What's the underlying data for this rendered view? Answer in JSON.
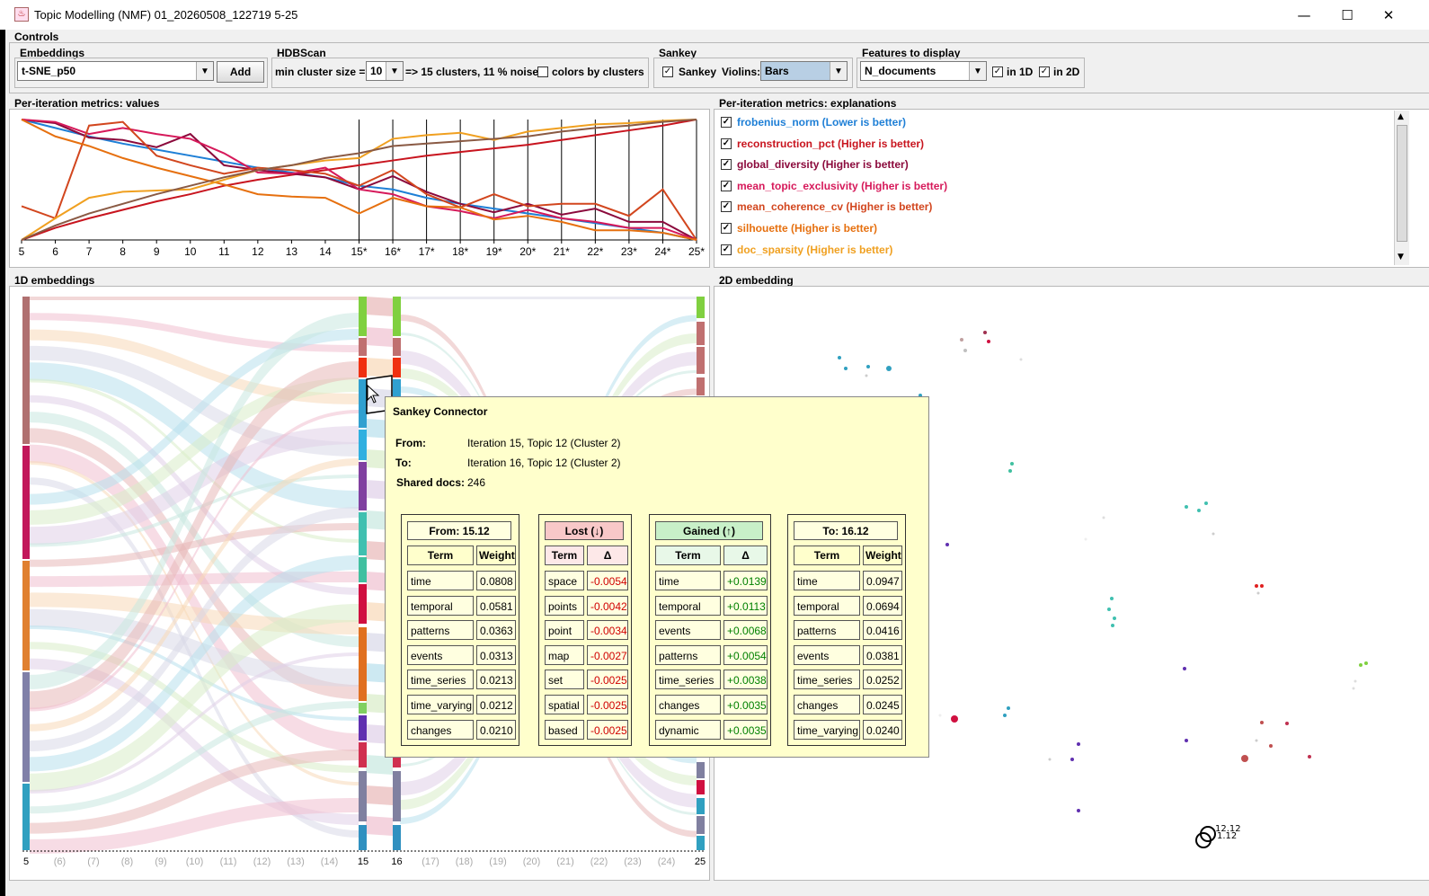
{
  "window": {
    "title": "Topic Modelling (NMF) 01_20260508_122719 5-25",
    "minimize": "—",
    "maximize": "☐",
    "close": "✕"
  },
  "controls": {
    "label": "Controls",
    "embeddings": {
      "label": "Embeddings",
      "value": "t-SNE_p50",
      "add": "Add"
    },
    "hdbscan": {
      "label": "HDBScan",
      "min_cluster_label": "min cluster size =",
      "min_cluster_value": "10",
      "result": "=> 15 clusters, 11 % noise",
      "colors_label": "colors by clusters"
    },
    "sankey": {
      "label": "Sankey",
      "sankey_label": "Sankey",
      "violins_label": "Violins:",
      "violins_value": "Bars"
    },
    "features": {
      "label": "Features to display",
      "value": "N_documents",
      "in1d": "in 1D",
      "in2d": "in 2D"
    }
  },
  "metrics_values": {
    "label": "Per-iteration metrics: values"
  },
  "metrics_explanations": {
    "label": "Per-iteration metrics: explanations",
    "items": [
      {
        "text": "frobenius_norm (Lower is better)",
        "color": "#1e7fd6"
      },
      {
        "text": "reconstruction_pct (Higher is better)",
        "color": "#c8141e"
      },
      {
        "text": "global_diversity (Higher is better)",
        "color": "#8b0a3c"
      },
      {
        "text": "mean_topic_exclusivity (Higher is better)",
        "color": "#d6195a"
      },
      {
        "text": "mean_coherence_cv (Higher is better)",
        "color": "#d2461e"
      },
      {
        "text": "silhouette (Higher is better)",
        "color": "#e6700f"
      },
      {
        "text": "doc_sparsity (Higher is better)",
        "color": "#f0a020"
      }
    ]
  },
  "chart_data": {
    "type": "line",
    "x": [
      "5",
      "6",
      "7",
      "8",
      "9",
      "10",
      "11",
      "12",
      "13",
      "14",
      "15*",
      "16*",
      "17*",
      "18*",
      "19*",
      "20*",
      "21*",
      "22*",
      "23*",
      "24*",
      "25*"
    ],
    "series": [
      {
        "name": "frobenius_norm (Lower is better)",
        "color": "#1e7fd6",
        "values": [
          1.0,
          0.93,
          0.86,
          0.8,
          0.75,
          0.7,
          0.65,
          0.6,
          0.56,
          0.52,
          0.45,
          0.42,
          0.35,
          0.3,
          0.26,
          0.22,
          0.18,
          0.14,
          0.1,
          0.06,
          0.0
        ]
      },
      {
        "name": "reconstruction_pct (Higher is better)",
        "color": "#c8141e",
        "values": [
          0.0,
          0.1,
          0.18,
          0.25,
          0.32,
          0.38,
          0.45,
          0.5,
          0.54,
          0.58,
          0.62,
          0.66,
          0.7,
          0.73,
          0.76,
          0.79,
          0.83,
          0.87,
          0.91,
          0.95,
          1.0
        ]
      },
      {
        "name": "global_diversity (Higher is better)",
        "color": "#8b0a3c",
        "values": [
          1.0,
          0.97,
          0.85,
          0.83,
          0.77,
          0.88,
          0.62,
          0.58,
          0.55,
          0.52,
          0.42,
          0.53,
          0.4,
          0.3,
          0.23,
          0.3,
          0.21,
          0.26,
          0.15,
          0.15,
          0.0
        ]
      },
      {
        "name": "mean_topic_exclusivity (Higher is better)",
        "color": "#d6195a",
        "values": [
          1.0,
          0.98,
          0.88,
          0.93,
          0.88,
          0.84,
          0.72,
          0.56,
          0.55,
          0.6,
          0.42,
          0.38,
          0.28,
          0.24,
          0.18,
          0.25,
          0.18,
          0.15,
          0.1,
          0.1,
          0.0
        ]
      },
      {
        "name": "mean_coherence_cv (Higher is better)",
        "color": "#d2461e",
        "values": [
          0.28,
          0.18,
          0.95,
          0.98,
          0.7,
          0.62,
          0.55,
          0.6,
          0.58,
          0.55,
          0.45,
          0.58,
          0.38,
          0.27,
          0.38,
          0.28,
          0.3,
          0.3,
          0.2,
          0.42,
          0.0
        ]
      },
      {
        "name": "silhouette (Higher is better)",
        "color": "#e6700f",
        "values": [
          1.0,
          0.86,
          0.78,
          0.68,
          0.6,
          0.53,
          0.46,
          0.38,
          0.36,
          0.35,
          0.22,
          0.35,
          0.28,
          0.27,
          0.17,
          0.2,
          0.15,
          0.08,
          0.08,
          0.06,
          0.0
        ]
      },
      {
        "name": "doc_sparsity (Higher is better)",
        "color": "#f0a020",
        "values": [
          0.0,
          0.18,
          0.35,
          0.4,
          0.41,
          0.42,
          0.5,
          0.58,
          0.62,
          0.66,
          0.68,
          0.84,
          0.87,
          0.89,
          0.83,
          0.9,
          0.93,
          0.96,
          0.97,
          0.99,
          1.0
        ]
      },
      {
        "name": "",
        "color": "#8a5a44",
        "values": [
          0.0,
          0.12,
          0.22,
          0.3,
          0.38,
          0.45,
          0.52,
          0.58,
          0.62,
          0.68,
          0.72,
          0.78,
          0.8,
          0.82,
          0.84,
          0.86,
          0.9,
          0.93,
          0.95,
          0.98,
          1.0
        ]
      }
    ],
    "ylim": [
      0,
      1
    ]
  },
  "oned": {
    "label": "1D embeddings",
    "axis": [
      {
        "t": "5",
        "dim": false
      },
      {
        "t": "(6)",
        "dim": true
      },
      {
        "t": "(7)",
        "dim": true
      },
      {
        "t": "(8)",
        "dim": true
      },
      {
        "t": "(9)",
        "dim": true
      },
      {
        "t": "(10)",
        "dim": true
      },
      {
        "t": "(11)",
        "dim": true
      },
      {
        "t": "(12)",
        "dim": true
      },
      {
        "t": "(13)",
        "dim": true
      },
      {
        "t": "(14)",
        "dim": true
      },
      {
        "t": "15",
        "dim": false
      },
      {
        "t": "16",
        "dim": false
      },
      {
        "t": "(17)",
        "dim": true
      },
      {
        "t": "(18)",
        "dim": true
      },
      {
        "t": "(19)",
        "dim": true
      },
      {
        "t": "(20)",
        "dim": true
      },
      {
        "t": "(21)",
        "dim": true
      },
      {
        "t": "(22)",
        "dim": true
      },
      {
        "t": "(23)",
        "dim": true
      },
      {
        "t": "(24)",
        "dim": true
      },
      {
        "t": "25",
        "dim": false
      }
    ]
  },
  "twod": {
    "label": "2D embedding",
    "point_label_a": "12.12",
    "point_label_b": "1.12"
  },
  "tooltip": {
    "title": "Sankey Connector",
    "from_label": "From:",
    "from_value": "Iteration 15, Topic 12 (Cluster 2)",
    "to_label": "To:",
    "to_value": "Iteration 16, Topic 12 (Cluster 2)",
    "shared_label": "Shared docs:",
    "shared_value": "246",
    "from_table": {
      "title": "From: 15.12",
      "col1": "Term",
      "col2": "Weight",
      "rows": [
        [
          "time",
          "0.0808"
        ],
        [
          "temporal",
          "0.0581"
        ],
        [
          "patterns",
          "0.0363"
        ],
        [
          "events",
          "0.0313"
        ],
        [
          "time_series",
          "0.0213"
        ],
        [
          "time_varying",
          "0.0212"
        ],
        [
          "changes",
          "0.0210"
        ]
      ]
    },
    "lost_table": {
      "title": "Lost (↓)",
      "col1": "Term",
      "col2": "Δ",
      "rows": [
        [
          "space",
          "-0.0054"
        ],
        [
          "points",
          "-0.0042"
        ],
        [
          "point",
          "-0.0034"
        ],
        [
          "map",
          "-0.0027"
        ],
        [
          "set",
          "-0.0025"
        ],
        [
          "spatial",
          "-0.0025"
        ],
        [
          "based",
          "-0.0025"
        ]
      ]
    },
    "gained_table": {
      "title": "Gained (↑)",
      "col1": "Term",
      "col2": "Δ",
      "rows": [
        [
          "time",
          "+0.0139"
        ],
        [
          "temporal",
          "+0.0113"
        ],
        [
          "events",
          "+0.0068"
        ],
        [
          "patterns",
          "+0.0054"
        ],
        [
          "time_series",
          "+0.0038"
        ],
        [
          "changes",
          "+0.0035"
        ],
        [
          "dynamic",
          "+0.0035"
        ]
      ]
    },
    "to_table": {
      "title": "To: 16.12",
      "col1": "Term",
      "col2": "Weight",
      "rows": [
        [
          "time",
          "0.0947"
        ],
        [
          "temporal",
          "0.0694"
        ],
        [
          "patterns",
          "0.0416"
        ],
        [
          "events",
          "0.0381"
        ],
        [
          "time_series",
          "0.0252"
        ],
        [
          "changes",
          "0.0245"
        ],
        [
          "time_varying",
          "0.0240"
        ]
      ]
    }
  }
}
